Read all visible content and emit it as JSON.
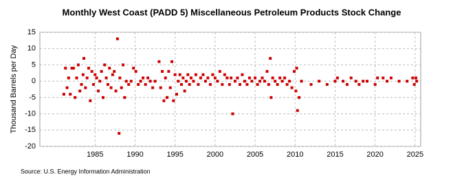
{
  "chart_data": {
    "type": "scatter",
    "title": "Monthly West Coast (PADD 5) Miscellaneous Petroleum Products Stock Change",
    "y_label": "Thousand Barrels per Day",
    "source": "Source: U.S. Energy Information Administration",
    "color": "#cc0000",
    "grid": true,
    "xlim": [
      1978.1,
      2025.7
    ],
    "xticks": [
      1985,
      1990,
      1995,
      2000,
      2005,
      2010,
      2015,
      2020,
      2025
    ],
    "ylim": [
      -20,
      15
    ],
    "yticks": [
      -20,
      -15,
      -10,
      -5,
      0,
      5,
      10,
      15
    ],
    "x": [
      1981.1,
      1981.3,
      1981.5,
      1981.7,
      1981.9,
      1982.1,
      1982.3,
      1982.5,
      1982.7,
      1982.9,
      1983.1,
      1983.3,
      1983.5,
      1983.6,
      1983.8,
      1984.0,
      1984.2,
      1984.4,
      1984.6,
      1984.8,
      1985.0,
      1985.2,
      1985.4,
      1985.6,
      1985.8,
      1986.0,
      1986.2,
      1986.4,
      1986.6,
      1986.8,
      1987.0,
      1987.2,
      1987.4,
      1987.6,
      1987.8,
      1988.0,
      1988.1,
      1988.3,
      1988.5,
      1988.7,
      1988.9,
      1989.2,
      1989.5,
      1989.8,
      1990.1,
      1990.4,
      1990.7,
      1991.0,
      1991.3,
      1991.6,
      1991.9,
      1992.2,
      1992.5,
      1993.0,
      1993.2,
      1993.4,
      1993.6,
      1993.8,
      1994.0,
      1994.2,
      1994.4,
      1994.6,
      1994.8,
      1995.0,
      1995.2,
      1995.4,
      1995.6,
      1995.8,
      1996.0,
      1996.2,
      1996.4,
      1996.6,
      1996.8,
      1997.0,
      1997.3,
      1997.6,
      1997.9,
      1998.2,
      1998.5,
      1998.8,
      1999.1,
      1999.4,
      1999.7,
      2000.0,
      2000.3,
      2000.6,
      2000.9,
      2001.2,
      2001.5,
      2001.8,
      2002.0,
      2002.2,
      2002.5,
      2002.8,
      2003.1,
      2003.4,
      2003.7,
      2004.0,
      2004.3,
      2004.6,
      2005.0,
      2005.3,
      2005.6,
      2005.9,
      2006.2,
      2006.5,
      2006.7,
      2006.9,
      2007.0,
      2007.2,
      2007.5,
      2007.8,
      2008.1,
      2008.4,
      2008.7,
      2009.0,
      2009.3,
      2009.6,
      2009.9,
      2010.1,
      2010.2,
      2010.3,
      2010.5,
      2010.8,
      2012.0,
      2013.0,
      2014.0,
      2015.0,
      2015.3,
      2016.0,
      2016.5,
      2017.0,
      2017.6,
      2018.0,
      2018.5,
      2019.0,
      2020.0,
      2020.3,
      2021.0,
      2021.5,
      2022.0,
      2023.0,
      2024.0,
      2024.7,
      2024.9,
      2025.1,
      2025.2
    ],
    "values": [
      -4,
      4,
      -2,
      1,
      -4,
      4,
      4,
      -5,
      1,
      5,
      -3,
      -1,
      2,
      7,
      -2,
      1,
      4,
      -6,
      3,
      -1,
      2,
      1,
      -3,
      0,
      3,
      -5,
      5,
      1,
      -1,
      4,
      -2,
      2,
      3,
      -3,
      13,
      -16,
      1,
      -2,
      5,
      -5,
      0,
      -1,
      0,
      4,
      3,
      -1,
      0,
      1,
      -1,
      1,
      0,
      -2,
      0,
      6,
      -2,
      3,
      -6,
      1,
      -5,
      3,
      -2,
      6,
      -6,
      2,
      -4,
      0,
      2,
      -1,
      1,
      -3,
      0,
      2,
      -1,
      1,
      0,
      2,
      -1,
      1,
      2,
      0,
      1,
      -1,
      2,
      1,
      0,
      3,
      -1,
      2,
      1,
      -1,
      1,
      -10,
      0,
      1,
      -1,
      2,
      0,
      -1,
      1,
      0,
      1,
      -1,
      0,
      1,
      0,
      3,
      -1,
      7,
      -5,
      1,
      0,
      -1,
      1,
      0,
      1,
      -1,
      0,
      -2,
      3,
      -3,
      4,
      -9,
      -5,
      0,
      -1,
      0,
      -1,
      0,
      1,
      0,
      -1,
      1,
      0,
      -1,
      0,
      0,
      -1,
      1,
      1,
      0,
      1,
      0,
      0,
      1,
      -1,
      1,
      0
    ]
  }
}
